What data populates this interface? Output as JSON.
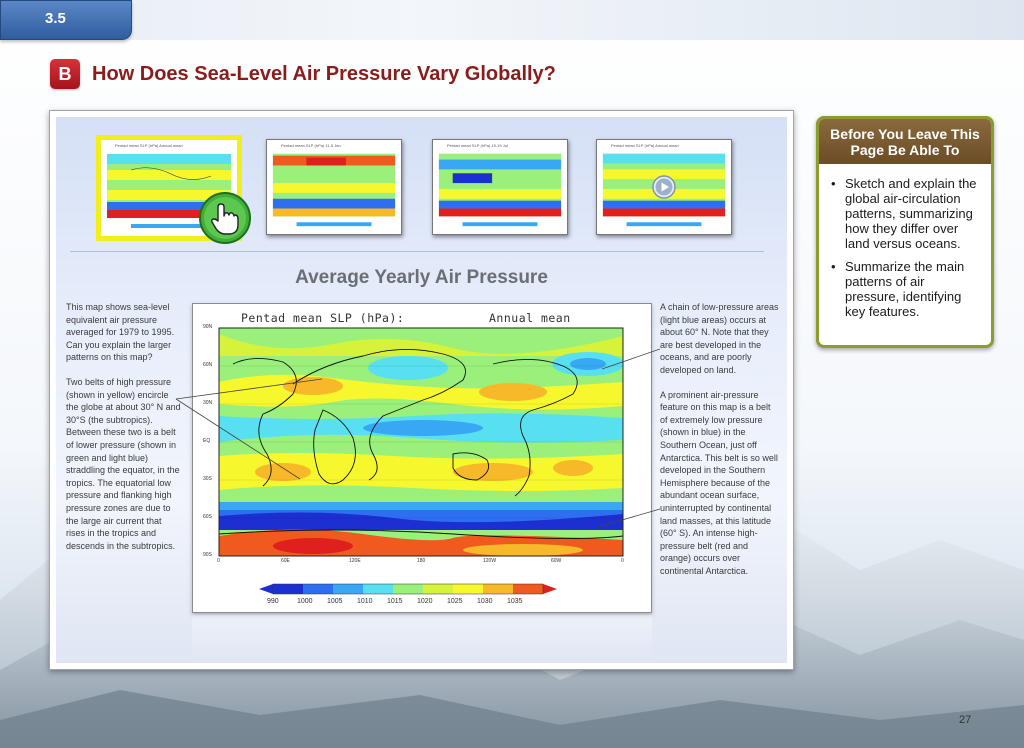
{
  "section": {
    "number": "3.5"
  },
  "heading": {
    "badge": "B",
    "title": "How Does Sea-Level Air Pressure Vary Globally?"
  },
  "thumbnails": [
    {
      "caption": "Pentad mean SLP (hPa)   Annual mean",
      "selected": true
    },
    {
      "caption": "Pentad mean SLP (hPa)   11-5 Jan",
      "selected": false
    },
    {
      "caption": "Pentad mean SLP (hPa)   15-19 Jul",
      "selected": false
    },
    {
      "caption": "Pentad mean SLP (hPa)   Annual mean",
      "selected": false
    }
  ],
  "icons": {
    "hand": "hand-pointer-icon",
    "play": "play-icon"
  },
  "main": {
    "title": "Average Yearly Air Pressure",
    "left_paragraphs": [
      "This map shows sea-level equivalent air pressure averaged for 1979 to 1995. Can you explain the larger patterns on this map?",
      "Two belts of high pressure (shown in yellow) encircle the globe at about 30° N and 30°S (the subtropics). Between these two is a belt of lower pressure (shown in green and light blue) straddling the equator, in the tropics. The equatorial low pressure and flanking high pressure zones are due to the large air current that rises in the tropics and descends in the subtropics."
    ],
    "right_paragraphs": [
      "A chain of low-pressure areas (light blue areas) occurs at about 60° N. Note that they are best developed in the oceans, and are poorly developed on land.",
      "A prominent air-pressure feature on this map is a belt of extremely low pressure (shown in blue) in the Southern Ocean, just off Antarctica. This belt is so well developed in the Southern Hemisphere because of the abundant ocean surface, uninterrupted by continental land masses, at this latitude (60° S). An intense high-pressure belt (red and orange) occurs over continental Antarctica."
    ]
  },
  "map": {
    "title_left": "Pentad mean SLP (hPa):",
    "title_right": "Annual mean",
    "lat_labels": [
      "90N",
      "60N",
      "30N",
      "EQ",
      "30S",
      "60S",
      "90S"
    ],
    "lon_labels": [
      "0",
      "60E",
      "120E",
      "180",
      "120W",
      "60W",
      "0"
    ],
    "colorbar_labels": [
      "990",
      "1000",
      "1005",
      "1010",
      "1015",
      "1020",
      "1025",
      "1030",
      "1035"
    ],
    "colorbar_colors": [
      "#1c2fd1",
      "#2e6ef0",
      "#38a8f4",
      "#58e0f0",
      "#9af07a",
      "#d6f23a",
      "#f7f72e",
      "#f7b92a",
      "#f05a1e",
      "#e01f1f"
    ]
  },
  "sidebar": {
    "title": "Before You Leave This Page Be Able To",
    "items": [
      "Sketch and explain the global air-circulation patterns, summarizing how they differ over land versus oceans.",
      "Summarize the main patterns of air pressure, identifying key features."
    ]
  },
  "page_number": "27"
}
